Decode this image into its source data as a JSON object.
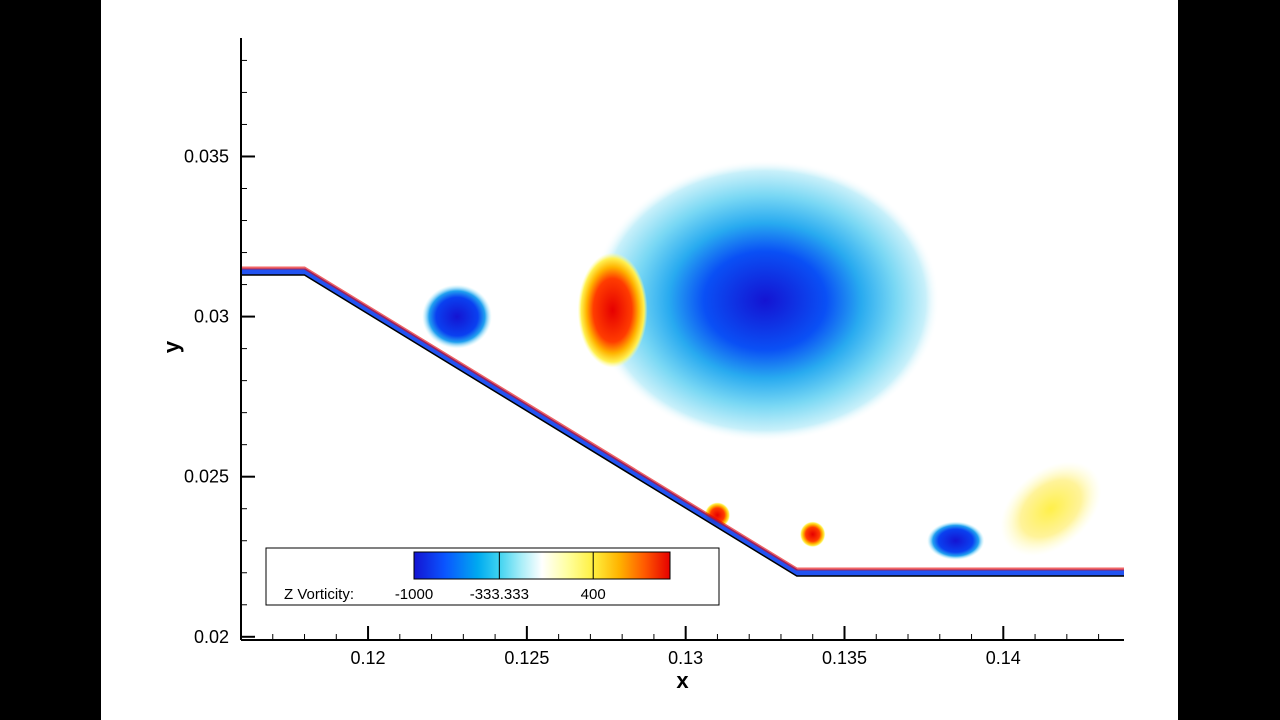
{
  "chart_data": {
    "type": "heatmap",
    "title": "",
    "xlabel": "x",
    "ylabel": "y",
    "xlim": [
      0.116,
      0.1438
    ],
    "ylim": [
      0.0199,
      0.0387
    ],
    "x_ticks": [
      {
        "value": 0.12,
        "label": "0.12"
      },
      {
        "value": 0.125,
        "label": "0.125"
      },
      {
        "value": 0.13,
        "label": "0.13"
      },
      {
        "value": 0.135,
        "label": "0.135"
      },
      {
        "value": 0.14,
        "label": "0.14"
      }
    ],
    "y_ticks": [
      {
        "value": 0.02,
        "label": "0.02"
      },
      {
        "value": 0.025,
        "label": "0.025"
      },
      {
        "value": 0.03,
        "label": "0.03"
      },
      {
        "value": 0.035,
        "label": "0.035"
      }
    ],
    "grid": false,
    "colorbar": {
      "label": "Z Vorticity:",
      "placement": "bottom-left",
      "range": [
        -1000,
        1000
      ],
      "tick_values": [
        -1000,
        -333.333,
        400
      ],
      "tick_labels": [
        "-1000",
        "-333.333",
        "400"
      ],
      "colors": [
        "#1414d2",
        "#0a55ff",
        "#00aaf0",
        "#3cd2f0",
        "#aaeef8",
        "#ffffff",
        "#ffffa0",
        "#fff040",
        "#ffb400",
        "#ff5a00",
        "#e60000"
      ]
    },
    "geometry": {
      "description_points": [
        [
          0.116,
          0.0313
        ],
        [
          0.118,
          0.0313
        ],
        [
          0.1335,
          0.0219
        ],
        [
          0.1438,
          0.0219
        ]
      ]
    },
    "field_features": [
      {
        "kind": "vortex",
        "sign": "negative",
        "center": [
          0.1325,
          0.0305
        ],
        "radius": [
          0.0055,
          0.0044
        ],
        "strength": -0.75
      },
      {
        "kind": "vortex",
        "sign": "positive",
        "center": [
          0.1277,
          0.0302
        ],
        "radius": [
          0.0011,
          0.0018
        ],
        "strength": 1.0
      },
      {
        "kind": "vortex",
        "sign": "negative",
        "center": [
          0.1228,
          0.03
        ],
        "radius": [
          0.0011,
          0.001
        ],
        "strength": -1.0
      },
      {
        "kind": "vortex",
        "sign": "negative",
        "center": [
          0.1385,
          0.023
        ],
        "radius": [
          0.0009,
          0.0006
        ],
        "strength": -1.0
      },
      {
        "kind": "vortex",
        "sign": "positive",
        "center": [
          0.1415,
          0.024
        ],
        "radius": [
          0.0018,
          0.0012
        ],
        "strength": 0.3
      },
      {
        "kind": "vortex",
        "sign": "positive",
        "center": [
          0.134,
          0.0232
        ],
        "radius": [
          0.0004,
          0.0004
        ],
        "strength": 1.0
      },
      {
        "kind": "vortex",
        "sign": "positive",
        "center": [
          0.131,
          0.0238
        ],
        "radius": [
          0.0004,
          0.0004
        ],
        "strength": 1.0
      }
    ]
  }
}
